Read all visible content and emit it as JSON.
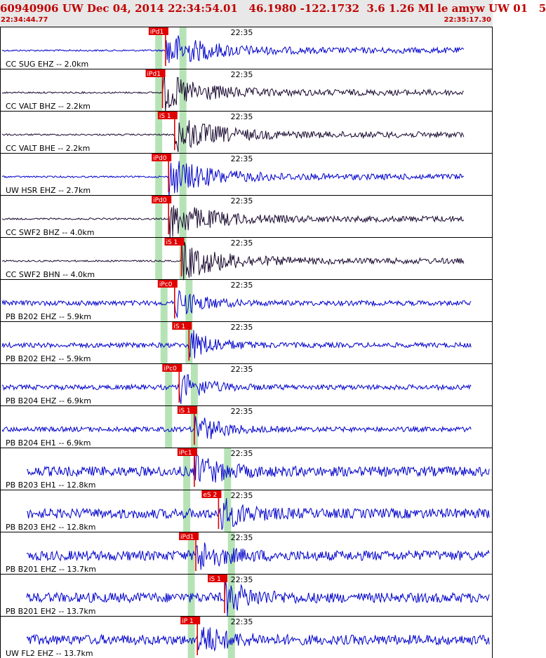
{
  "header": {
    "title": "60940906 UW Dec 04, 2014 22:34:54.01   46.1980 -122.1732  3.6 1.26 Ml le amyw UW 01   5",
    "start_time": "22:34:44.77",
    "end_time": "22:35:17.30"
  },
  "colors": {
    "accent": "#c00000",
    "trace_blue": "#0000cc",
    "trace_dark": "#1a0a30",
    "pick_red": "#e00000",
    "window_green": "#b6e3b6",
    "header_bg": "#e8e8e8"
  },
  "chart_data": {
    "type": "line",
    "x_unit": "time",
    "x_start": "22:34:44.77",
    "x_end": "22:35:17.30",
    "minute_tick_label": "22:35",
    "minute_tick_time": "22:35:00.00",
    "grid": false,
    "traces": [
      {
        "label": "CC SUG EHZ -- 2.0km",
        "pick": "iPd1",
        "pick_time": "22:34:55.70",
        "style": "blue",
        "windows": [
          "22:34:55.25",
          "22:34:56.85"
        ]
      },
      {
        "label": "CC VALT BHZ -- 2.2km",
        "pick": "iPd1",
        "pick_time": "22:34:55.50",
        "style": "dark",
        "windows": [
          "22:34:55.25",
          "22:34:56.85"
        ]
      },
      {
        "label": "CC VALT BHE -- 2.2km",
        "pick": "iS 1",
        "pick_time": "22:34:56.30",
        "style": "dark",
        "windows": [
          "22:34:55.25",
          "22:34:56.85"
        ]
      },
      {
        "label": "UW HSR EHZ -- 2.7km",
        "pick": "iPd0",
        "pick_time": "22:34:55.90",
        "style": "blue",
        "windows": [
          "22:34:55.25",
          "22:34:56.85"
        ]
      },
      {
        "label": "CC SWF2 BHZ -- 4.0km",
        "pick": "iPd0",
        "pick_time": "22:34:55.90",
        "style": "dark",
        "windows": [
          "22:34:55.25",
          "22:34:56.85"
        ]
      },
      {
        "label": "CC SWF2 BHN -- 4.0km",
        "pick": "iS 1",
        "pick_time": "22:34:56.75",
        "style": "dark",
        "windows": [
          "22:34:55.25",
          "22:34:56.85"
        ]
      },
      {
        "label": "PB B202 EHZ -- 5.9km",
        "pick": "iPc0",
        "pick_time": "22:34:56.30",
        "style": "blue",
        "windows": [
          "22:34:55.60",
          "22:34:57.25"
        ]
      },
      {
        "label": "PB B202 EH2 -- 5.9km",
        "pick": "iS 1",
        "pick_time": "22:34:57.25",
        "style": "blue",
        "windows": [
          "22:34:55.60",
          "22:34:57.25"
        ]
      },
      {
        "label": "PB B204 EHZ -- 6.9km",
        "pick": "iPc0",
        "pick_time": "22:34:56.60",
        "style": "blue",
        "windows": [
          "22:34:55.90",
          "22:34:57.60"
        ]
      },
      {
        "label": "PB B204 EH1 -- 6.9km",
        "pick": "iS 1",
        "pick_time": "22:34:57.60",
        "style": "blue",
        "windows": [
          "22:34:55.90",
          "22:34:57.60"
        ]
      },
      {
        "label": "PB B203 EH1 -- 12.8km",
        "pick": "iPc1",
        "pick_time": "22:34:57.60",
        "style": "blue",
        "windows": [
          "22:34:57.10",
          "22:34:59.80"
        ]
      },
      {
        "label": "PB B203 EH2 -- 12.8km",
        "pick": "eS 2",
        "pick_time": "22:34:59.20",
        "style": "blue",
        "windows": [
          "22:34:57.10",
          "22:34:59.80"
        ]
      },
      {
        "label": "PB B201 EHZ -- 13.7km",
        "pick": "iPd1",
        "pick_time": "22:34:57.70",
        "style": "blue",
        "windows": [
          "22:34:57.40",
          "22:35:00.05"
        ]
      },
      {
        "label": "PB B201 EH2 -- 13.7km",
        "pick": "iS 1",
        "pick_time": "22:34:59.60",
        "style": "blue",
        "windows": [
          "22:34:57.40",
          "22:35:00.05"
        ]
      },
      {
        "label": "UW FL2 EHZ -- 13.7km",
        "pick": "iP 1",
        "pick_time": "22:34:57.80",
        "style": "blue",
        "windows": [
          "22:34:57.40",
          "22:35:00.05"
        ]
      }
    ]
  }
}
